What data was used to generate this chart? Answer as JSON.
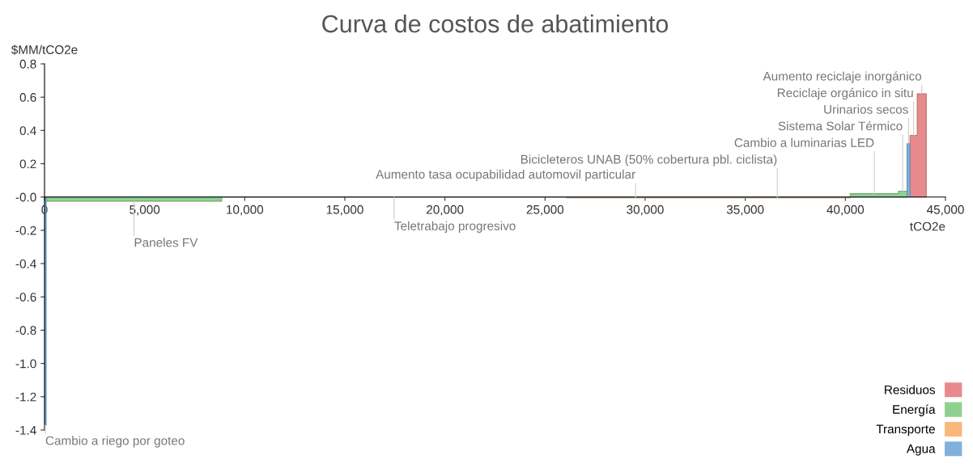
{
  "chart_data": {
    "type": "area",
    "title": "Curva de costos de abatimiento",
    "xlabel": "tCO2e",
    "ylabel": "$MM/tCO2e",
    "xlim": [
      0,
      45000
    ],
    "ylim": [
      -1.4,
      0.8
    ],
    "xticks": [
      0,
      {
        "value": 5000,
        "label": "5,000"
      },
      {
        "value": 10000,
        "label": "10,000"
      },
      {
        "value": 15000,
        "label": "15,000"
      },
      {
        "value": 20000,
        "label": "20,000"
      },
      {
        "value": 25000,
        "label": "25,000"
      },
      {
        "value": 30000,
        "label": "30,000"
      },
      {
        "value": 35000,
        "label": "35,000"
      },
      {
        "value": 40000,
        "label": "40,000"
      },
      {
        "value": 45000,
        "label": "45,000"
      }
    ],
    "yticks": [
      -1.4,
      -1.2,
      {
        "value": -1.0,
        "label": "-1.0"
      },
      -0.8,
      -0.6,
      -0.4,
      -0.2,
      {
        "value": 0,
        "label": "-0.0"
      },
      0.2,
      0.4,
      0.6,
      0.8
    ],
    "grid": false,
    "legend": "bottom right",
    "series": [
      {
        "name": "Residuos",
        "color": "#e88a8c",
        "x": [
          43230,
          43230,
          43590,
          43590,
          44040,
          44040
        ],
        "values": [
          0,
          0.37,
          0.37,
          0.62,
          0.62,
          0
        ]
      },
      {
        "name": "Energía",
        "color": "#90d08e",
        "x": [
          80,
          80,
          8850,
          8850,
          40240,
          40240,
          42650,
          42650,
          43080,
          43080
        ],
        "values": [
          0,
          -0.025,
          -0.025,
          0,
          0,
          0.02,
          0.02,
          0.035,
          0.035,
          0
        ]
      },
      {
        "name": "Transporte",
        "color": "#f8b77c",
        "x": [
          26080,
          26080,
          40240,
          40240
        ],
        "values": [
          0,
          -0.005,
          -0.005,
          0
        ]
      },
      {
        "name": "Agua",
        "color": "#80b1db",
        "x": [
          0,
          0,
          80,
          80,
          43080,
          43080,
          43230,
          43230
        ],
        "values": [
          0,
          -1.37,
          -1.37,
          0,
          0,
          0.32,
          0.32,
          0
        ]
      }
    ],
    "annotations": [
      {
        "text": "Cambio a riego por goteo",
        "x": 40,
        "y": -1.37
      },
      {
        "text": "Paneles FV",
        "x": 4465,
        "y": -0.025
      },
      {
        "text": "Teletrabajo progresivo",
        "x": 17465,
        "y": 0
      },
      {
        "text": "Aumento tasa ocupabilidad automovil particular",
        "x": 29520,
        "y": -0.005
      },
      {
        "text": "Bicicleteros UNAB (50% cobertura pbl. ciclista)",
        "x": 36600,
        "y": -0.005
      },
      {
        "text": "Cambio a luminarias LED",
        "x": 41445,
        "y": 0.02
      },
      {
        "text": "Sistema Solar Térmico",
        "x": 42865,
        "y": 0.035
      },
      {
        "text": "Urinarios secos",
        "x": 43155,
        "y": 0.32
      },
      {
        "text": "Reciclaje orgánico in situ",
        "x": 43410,
        "y": 0.37
      },
      {
        "text": "Aumento reciclaje inorgánico",
        "x": 43815,
        "y": 0.62
      }
    ]
  }
}
